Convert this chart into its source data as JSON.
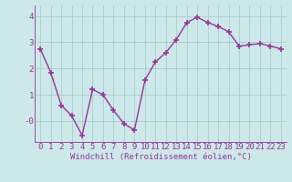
{
  "x": [
    0,
    1,
    2,
    3,
    4,
    5,
    6,
    7,
    8,
    9,
    10,
    11,
    12,
    13,
    14,
    15,
    16,
    17,
    18,
    19,
    20,
    21,
    22,
    23
  ],
  "y": [
    2.75,
    1.85,
    0.6,
    0.2,
    -0.55,
    1.2,
    1.0,
    0.4,
    -0.1,
    -0.35,
    1.55,
    2.25,
    2.6,
    3.1,
    3.75,
    3.95,
    3.75,
    3.6,
    3.4,
    2.85,
    2.9,
    2.95,
    2.85,
    2.75
  ],
  "line_color": "#993399",
  "marker": "+",
  "bg_color": "#cce8e8",
  "grid_color": "#aacccc",
  "xlabel": "Windchill (Refroidissement éolien,°C)",
  "ylim": [
    -0.8,
    4.4
  ],
  "xlim": [
    -0.5,
    23.5
  ],
  "yticks": [
    0,
    1,
    2,
    3,
    4
  ],
  "ytick_labels": [
    "-0",
    "1",
    "2",
    "3",
    "4"
  ],
  "xlabel_fontsize": 6.5,
  "tick_fontsize": 6.5,
  "line_width": 1.0,
  "marker_size": 4
}
